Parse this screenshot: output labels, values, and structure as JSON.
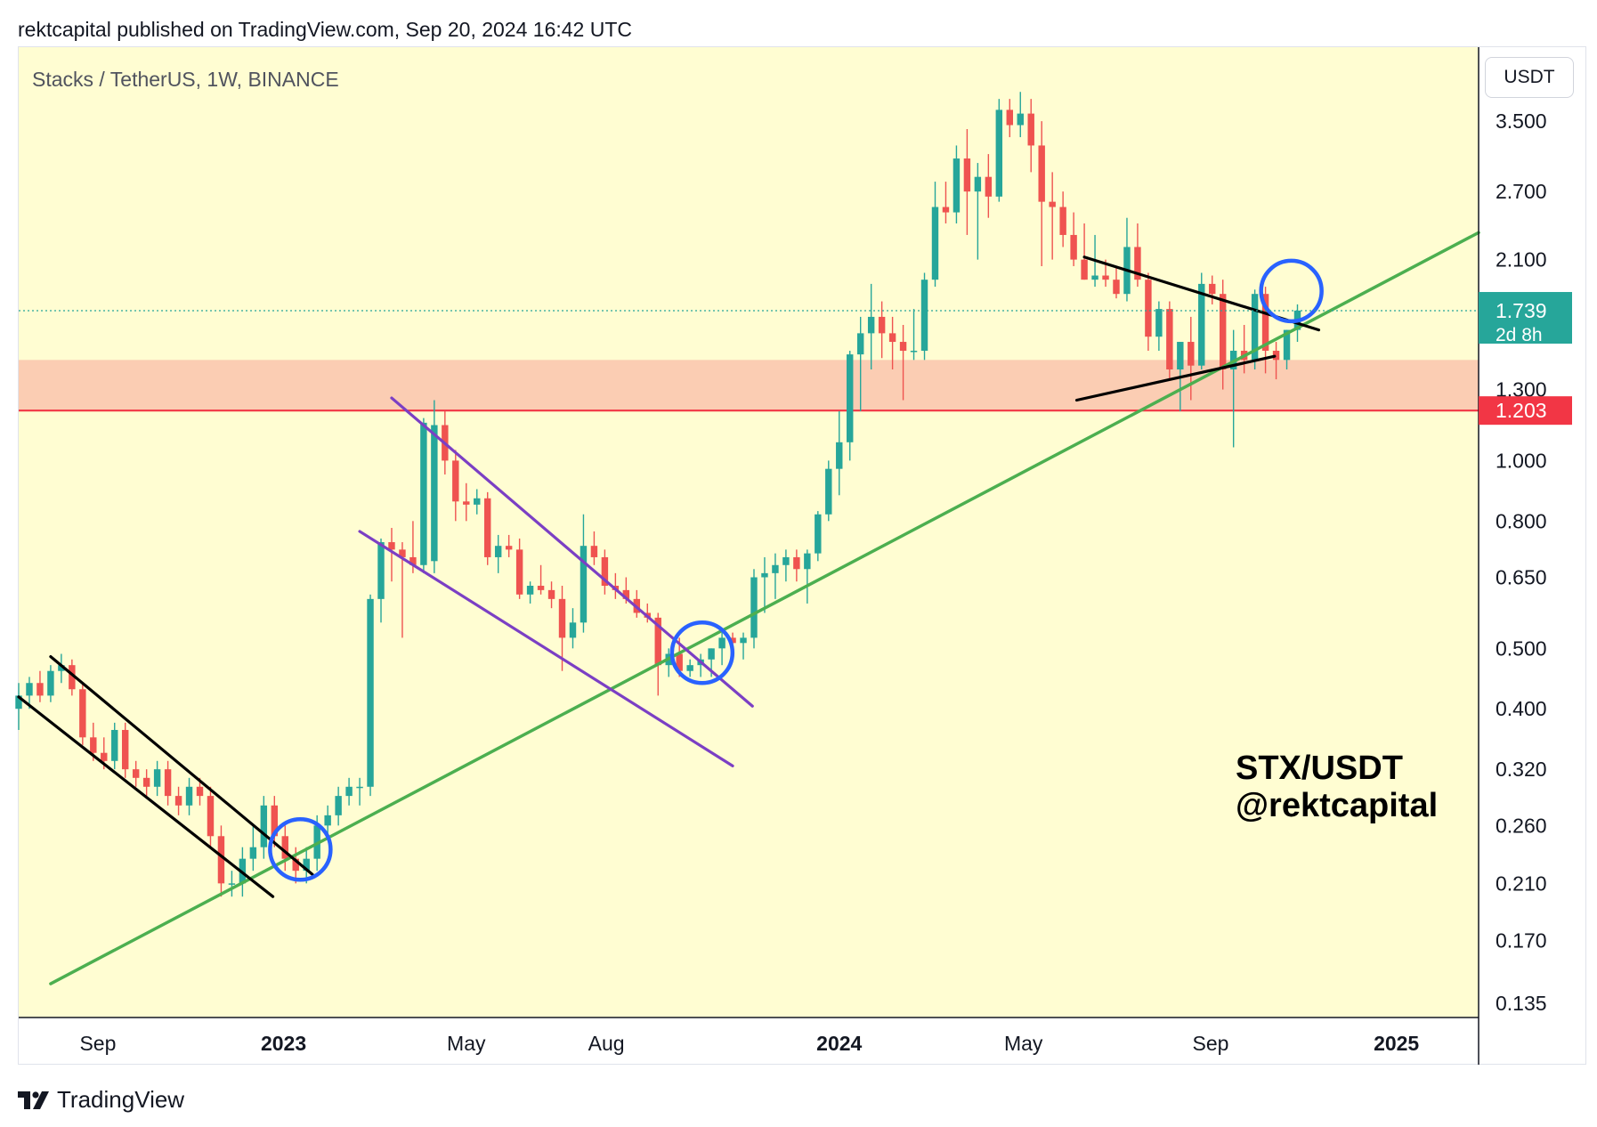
{
  "header": {
    "published_by": "rektcapital published on TradingView.com, Sep 20, 2024 16:42 UTC"
  },
  "chart_title": "Stacks / TetherUS, 1W, BINANCE",
  "currency_button": "USDT",
  "footer": {
    "logo_text": "TradingView"
  },
  "watermark": {
    "line1": "STX/USDT",
    "line2": "@rektcapital"
  },
  "colors": {
    "background": "#fffdd2",
    "up": "#26a69a",
    "down": "#ef5350",
    "support_zone": "#fbcdb3",
    "support_line": "#f23645",
    "trend_green": "#4caf50",
    "channel_black": "#000000",
    "channel_purple": "#7b3fc4",
    "circle_blue": "#2962ff"
  },
  "price_badges": {
    "last_price": "1.739",
    "countdown": "2d 8h",
    "support_price": "1.203"
  },
  "chart_data": {
    "type": "candlestick",
    "scale": "log",
    "y_range": [
      0.128,
      4.6
    ],
    "y_ticks": [
      "3.500",
      "2.700",
      "2.100",
      "1.300",
      "1.000",
      "0.800",
      "0.650",
      "0.500",
      "0.400",
      "0.320",
      "0.260",
      "0.210",
      "0.170",
      "0.135"
    ],
    "x_range": [
      "2022-07-11",
      "2025-02-24"
    ],
    "x_ticks": [
      {
        "label": "Sep",
        "date": "2022-09-01",
        "bold": false
      },
      {
        "label": "2023",
        "date": "2023-01-01",
        "bold": true
      },
      {
        "label": "May",
        "date": "2023-05-01",
        "bold": false
      },
      {
        "label": "Aug",
        "date": "2023-08-01",
        "bold": false
      },
      {
        "label": "2024",
        "date": "2024-01-01",
        "bold": true
      },
      {
        "label": "May",
        "date": "2024-05-01",
        "bold": false
      },
      {
        "label": "Sep",
        "date": "2024-09-01",
        "bold": false
      },
      {
        "label": "2025",
        "date": "2025-01-01",
        "bold": true
      }
    ],
    "first_candle_date": "2022-07-11",
    "candle_interval_days": 7,
    "candles": [
      [
        0.4,
        0.44,
        0.37,
        0.42
      ],
      [
        0.42,
        0.45,
        0.4,
        0.44
      ],
      [
        0.44,
        0.46,
        0.41,
        0.42
      ],
      [
        0.42,
        0.47,
        0.41,
        0.46
      ],
      [
        0.46,
        0.49,
        0.44,
        0.47
      ],
      [
        0.47,
        0.48,
        0.42,
        0.43
      ],
      [
        0.43,
        0.44,
        0.35,
        0.36
      ],
      [
        0.36,
        0.38,
        0.33,
        0.34
      ],
      [
        0.34,
        0.36,
        0.32,
        0.33
      ],
      [
        0.33,
        0.38,
        0.32,
        0.37
      ],
      [
        0.37,
        0.38,
        0.31,
        0.32
      ],
      [
        0.32,
        0.33,
        0.3,
        0.31
      ],
      [
        0.31,
        0.32,
        0.29,
        0.3
      ],
      [
        0.3,
        0.33,
        0.29,
        0.32
      ],
      [
        0.32,
        0.33,
        0.28,
        0.29
      ],
      [
        0.29,
        0.3,
        0.27,
        0.28
      ],
      [
        0.28,
        0.31,
        0.27,
        0.3
      ],
      [
        0.3,
        0.31,
        0.28,
        0.29
      ],
      [
        0.29,
        0.3,
        0.24,
        0.25
      ],
      [
        0.25,
        0.26,
        0.2,
        0.21
      ],
      [
        0.21,
        0.22,
        0.2,
        0.21
      ],
      [
        0.21,
        0.24,
        0.2,
        0.23
      ],
      [
        0.23,
        0.26,
        0.22,
        0.24
      ],
      [
        0.24,
        0.29,
        0.23,
        0.28
      ],
      [
        0.28,
        0.29,
        0.24,
        0.25
      ],
      [
        0.25,
        0.26,
        0.22,
        0.23
      ],
      [
        0.23,
        0.24,
        0.21,
        0.22
      ],
      [
        0.22,
        0.24,
        0.21,
        0.23
      ],
      [
        0.23,
        0.27,
        0.22,
        0.26
      ],
      [
        0.26,
        0.28,
        0.25,
        0.27
      ],
      [
        0.27,
        0.3,
        0.26,
        0.29
      ],
      [
        0.29,
        0.31,
        0.28,
        0.3
      ],
      [
        0.3,
        0.31,
        0.28,
        0.3
      ],
      [
        0.3,
        0.61,
        0.29,
        0.6
      ],
      [
        0.6,
        0.75,
        0.55,
        0.74
      ],
      [
        0.74,
        0.78,
        0.64,
        0.72
      ],
      [
        0.72,
        0.74,
        0.52,
        0.7
      ],
      [
        0.7,
        0.8,
        0.66,
        0.68
      ],
      [
        0.68,
        1.17,
        0.66,
        1.15
      ],
      [
        0.69,
        1.25,
        0.66,
        1.14
      ],
      [
        1.14,
        1.2,
        0.95,
        1.0
      ],
      [
        1.0,
        1.04,
        0.8,
        0.86
      ],
      [
        0.86,
        0.92,
        0.8,
        0.85
      ],
      [
        0.85,
        0.9,
        0.82,
        0.87
      ],
      [
        0.87,
        0.89,
        0.68,
        0.7
      ],
      [
        0.7,
        0.76,
        0.66,
        0.73
      ],
      [
        0.73,
        0.76,
        0.7,
        0.72
      ],
      [
        0.72,
        0.75,
        0.6,
        0.61
      ],
      [
        0.61,
        0.64,
        0.59,
        0.63
      ],
      [
        0.63,
        0.68,
        0.61,
        0.62
      ],
      [
        0.62,
        0.64,
        0.58,
        0.6
      ],
      [
        0.6,
        0.63,
        0.46,
        0.52
      ],
      [
        0.52,
        0.58,
        0.5,
        0.55
      ],
      [
        0.55,
        0.82,
        0.53,
        0.73
      ],
      [
        0.73,
        0.77,
        0.68,
        0.7
      ],
      [
        0.7,
        0.72,
        0.61,
        0.63
      ],
      [
        0.63,
        0.66,
        0.6,
        0.62
      ],
      [
        0.62,
        0.65,
        0.59,
        0.6
      ],
      [
        0.6,
        0.62,
        0.56,
        0.57
      ],
      [
        0.57,
        0.59,
        0.55,
        0.56
      ],
      [
        0.56,
        0.57,
        0.42,
        0.47
      ],
      [
        0.47,
        0.5,
        0.45,
        0.49
      ],
      [
        0.49,
        0.52,
        0.45,
        0.46
      ],
      [
        0.46,
        0.48,
        0.45,
        0.47
      ],
      [
        0.47,
        0.49,
        0.45,
        0.48
      ],
      [
        0.48,
        0.5,
        0.45,
        0.5
      ],
      [
        0.5,
        0.53,
        0.47,
        0.52
      ],
      [
        0.52,
        0.53,
        0.49,
        0.51
      ],
      [
        0.51,
        0.53,
        0.48,
        0.52
      ],
      [
        0.52,
        0.67,
        0.5,
        0.65
      ],
      [
        0.65,
        0.7,
        0.57,
        0.66
      ],
      [
        0.66,
        0.71,
        0.6,
        0.68
      ],
      [
        0.68,
        0.72,
        0.64,
        0.7
      ],
      [
        0.7,
        0.72,
        0.64,
        0.67
      ],
      [
        0.67,
        0.72,
        0.59,
        0.71
      ],
      [
        0.71,
        0.83,
        0.69,
        0.82
      ],
      [
        0.82,
        1.0,
        0.8,
        0.97
      ],
      [
        0.97,
        1.2,
        0.88,
        1.07
      ],
      [
        1.07,
        1.5,
        1.0,
        1.48
      ],
      [
        1.48,
        1.7,
        1.2,
        1.6
      ],
      [
        1.6,
        1.92,
        1.4,
        1.7
      ],
      [
        1.7,
        1.8,
        1.46,
        1.6
      ],
      [
        1.6,
        1.7,
        1.4,
        1.55
      ],
      [
        1.55,
        1.65,
        1.25,
        1.5
      ],
      [
        1.5,
        1.75,
        1.45,
        1.5
      ],
      [
        1.5,
        2.0,
        1.45,
        1.95
      ],
      [
        1.95,
        2.8,
        1.9,
        2.55
      ],
      [
        2.55,
        2.8,
        2.4,
        2.5
      ],
      [
        2.5,
        3.2,
        2.4,
        3.05
      ],
      [
        3.05,
        3.4,
        2.3,
        2.7
      ],
      [
        2.7,
        3.0,
        2.1,
        2.85
      ],
      [
        2.85,
        3.1,
        2.45,
        2.65
      ],
      [
        2.65,
        3.8,
        2.6,
        3.65
      ],
      [
        3.65,
        3.8,
        3.3,
        3.45
      ],
      [
        3.45,
        3.9,
        3.3,
        3.6
      ],
      [
        3.6,
        3.8,
        2.9,
        3.2
      ],
      [
        3.2,
        3.5,
        2.05,
        2.6
      ],
      [
        2.6,
        2.9,
        2.1,
        2.55
      ],
      [
        2.55,
        2.7,
        2.2,
        2.3
      ],
      [
        2.3,
        2.5,
        2.05,
        2.1
      ],
      [
        2.1,
        2.4,
        1.95,
        1.95
      ],
      [
        1.95,
        2.3,
        1.9,
        1.98
      ],
      [
        1.98,
        2.1,
        1.9,
        1.95
      ],
      [
        1.95,
        2.05,
        1.82,
        1.85
      ],
      [
        1.85,
        2.45,
        1.8,
        2.2
      ],
      [
        2.2,
        2.4,
        1.9,
        1.95
      ],
      [
        1.95,
        2.0,
        1.5,
        1.58
      ],
      [
        1.58,
        1.8,
        1.5,
        1.75
      ],
      [
        1.75,
        1.8,
        1.35,
        1.4
      ],
      [
        1.4,
        1.55,
        1.2,
        1.55
      ],
      [
        1.55,
        1.7,
        1.25,
        1.42
      ],
      [
        1.42,
        2.0,
        1.4,
        1.92
      ],
      [
        1.92,
        1.98,
        1.78,
        1.85
      ],
      [
        1.85,
        1.95,
        1.3,
        1.4
      ],
      [
        1.4,
        1.62,
        1.05,
        1.5
      ],
      [
        1.5,
        1.65,
        1.38,
        1.45
      ],
      [
        1.45,
        1.88,
        1.4,
        1.85
      ],
      [
        1.85,
        1.9,
        1.38,
        1.5
      ],
      [
        1.5,
        1.55,
        1.35,
        1.45
      ],
      [
        1.45,
        1.62,
        1.4,
        1.62
      ],
      [
        1.62,
        1.78,
        1.55,
        1.74
      ]
    ],
    "support_zone": [
      1.203,
      1.45
    ],
    "support_level": 1.203,
    "annotations": [
      {
        "kind": "line",
        "color": "green",
        "from": [
          "2022-08-01",
          0.145
        ],
        "to": [
          "2025-02-24",
          2.32
        ]
      },
      {
        "kind": "line",
        "color": "black",
        "from": [
          "2022-07-11",
          0.418
        ],
        "to": [
          "2022-12-25",
          0.2
        ]
      },
      {
        "kind": "line",
        "color": "black",
        "from": [
          "2022-08-01",
          0.485
        ],
        "to": [
          "2023-01-20",
          0.217
        ]
      },
      {
        "kind": "line",
        "color": "purple",
        "from": [
          "2023-02-20",
          0.77
        ],
        "to": [
          "2023-10-23",
          0.324
        ]
      },
      {
        "kind": "line",
        "color": "purple",
        "from": [
          "2023-03-13",
          1.26
        ],
        "to": [
          "2023-11-05",
          0.404
        ]
      },
      {
        "kind": "line",
        "color": "black",
        "from": [
          "2024-06-10",
          2.12
        ],
        "to": [
          "2024-11-11",
          1.62
        ]
      },
      {
        "kind": "line",
        "color": "black",
        "from": [
          "2024-06-05",
          1.25
        ],
        "to": [
          "2024-10-13",
          1.47
        ]
      },
      {
        "kind": "circle",
        "color": "blue",
        "at": [
          "2023-01-12",
          0.238
        ]
      },
      {
        "kind": "circle",
        "color": "blue",
        "at": [
          "2023-10-03",
          0.492
        ]
      },
      {
        "kind": "circle",
        "color": "blue",
        "at": [
          "2024-10-24",
          1.87
        ]
      }
    ]
  }
}
